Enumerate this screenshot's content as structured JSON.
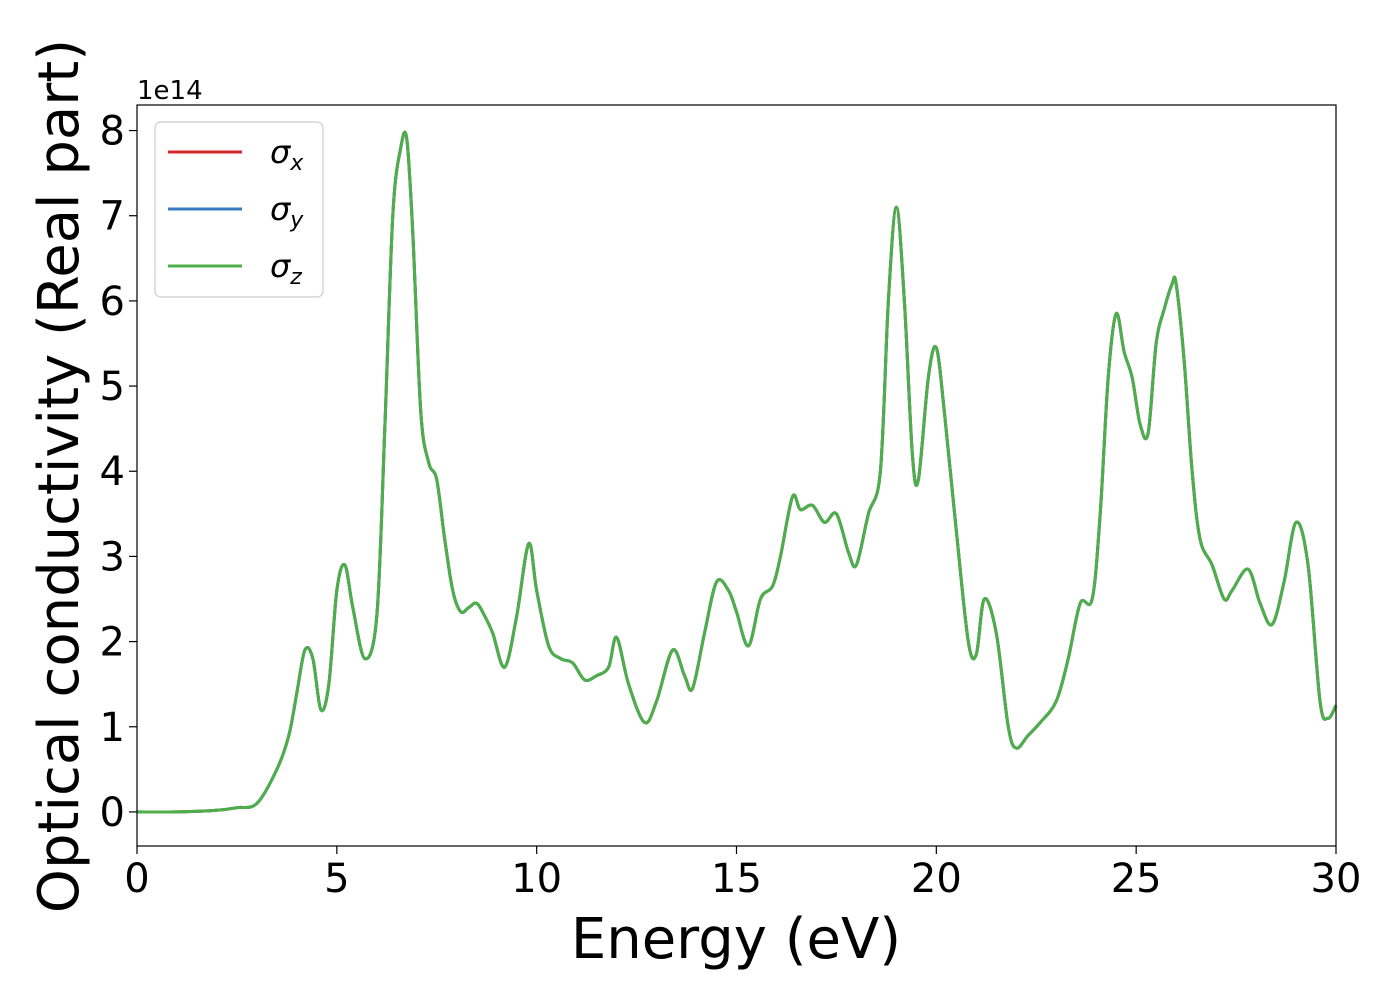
{
  "chart_data": {
    "type": "line",
    "xlabel": "Energy (eV)",
    "ylabel": "Optical conductivity (Real part)",
    "offset_text": "1e14",
    "xlim": [
      0,
      30
    ],
    "ylim": [
      -0.4,
      8.3
    ],
    "x_ticks": [
      0,
      5,
      10,
      15,
      20,
      25,
      30
    ],
    "y_ticks": [
      0,
      1,
      2,
      3,
      4,
      5,
      6,
      7,
      8
    ],
    "x_tick_labels": [
      "0",
      "5",
      "10",
      "15",
      "20",
      "25",
      "30"
    ],
    "y_tick_labels": [
      "0",
      "1",
      "2",
      "3",
      "4",
      "5",
      "6",
      "7",
      "8"
    ],
    "grid": false,
    "legend_position": "top-left",
    "series": [
      {
        "name": "σx",
        "symbol": "σ",
        "subscript": "x",
        "color": "#d62728"
      },
      {
        "name": "σy",
        "symbol": "σ",
        "subscript": "y",
        "color": "#3a7bbf"
      },
      {
        "name": "σz",
        "symbol": "σ",
        "subscript": "z",
        "color": "#4daf4a"
      }
    ],
    "x": [
      0,
      1,
      2,
      2.5,
      3,
      3.5,
      3.8,
      4.0,
      4.2,
      4.4,
      4.6,
      4.8,
      5.0,
      5.2,
      5.4,
      5.7,
      6.0,
      6.2,
      6.4,
      6.6,
      6.75,
      6.9,
      7.1,
      7.3,
      7.5,
      7.7,
      7.9,
      8.1,
      8.3,
      8.5,
      8.7,
      8.9,
      9.2,
      9.5,
      9.8,
      10.0,
      10.3,
      10.6,
      10.9,
      11.2,
      11.5,
      11.8,
      12.0,
      12.3,
      12.7,
      13.0,
      13.4,
      13.7,
      13.9,
      14.2,
      14.5,
      14.8,
      15.0,
      15.3,
      15.6,
      15.9,
      16.1,
      16.4,
      16.6,
      16.9,
      17.2,
      17.5,
      17.8,
      18.0,
      18.3,
      18.6,
      18.8,
      19.0,
      19.2,
      19.4,
      19.55,
      19.8,
      20.0,
      20.2,
      20.5,
      20.8,
      21.0,
      21.2,
      21.5,
      21.8,
      22.0,
      22.3,
      22.6,
      23.0,
      23.3,
      23.6,
      23.9,
      24.1,
      24.3,
      24.5,
      24.7,
      24.9,
      25.1,
      25.3,
      25.5,
      25.7,
      25.9,
      26.0,
      26.2,
      26.4,
      26.6,
      26.9,
      27.2,
      27.4,
      27.8,
      28.1,
      28.4,
      28.7,
      29.0,
      29.3,
      29.6,
      29.8,
      30.0
    ],
    "values": [
      0.0,
      0.0,
      0.02,
      0.05,
      0.1,
      0.5,
      0.9,
      1.4,
      1.9,
      1.8,
      1.2,
      1.5,
      2.6,
      2.9,
      2.4,
      1.8,
      2.3,
      4.5,
      7.0,
      7.8,
      7.9,
      6.8,
      4.7,
      4.1,
      3.9,
      3.2,
      2.6,
      2.35,
      2.4,
      2.45,
      2.3,
      2.1,
      1.7,
      2.3,
      3.15,
      2.6,
      1.95,
      1.8,
      1.75,
      1.55,
      1.6,
      1.7,
      2.05,
      1.5,
      1.05,
      1.3,
      1.9,
      1.6,
      1.45,
      2.1,
      2.7,
      2.6,
      2.35,
      1.95,
      2.5,
      2.65,
      3.0,
      3.7,
      3.55,
      3.6,
      3.4,
      3.5,
      3.05,
      2.9,
      3.5,
      4.0,
      6.0,
      7.1,
      6.0,
      4.2,
      3.9,
      5.1,
      5.45,
      4.7,
      3.3,
      2.0,
      1.85,
      2.5,
      2.1,
      1.0,
      0.75,
      0.9,
      1.05,
      1.3,
      1.8,
      2.45,
      2.5,
      3.5,
      5.1,
      5.85,
      5.4,
      5.1,
      4.55,
      4.45,
      5.5,
      5.9,
      6.2,
      6.2,
      5.3,
      4.0,
      3.2,
      2.9,
      2.5,
      2.6,
      2.85,
      2.45,
      2.2,
      2.7,
      3.4,
      2.9,
      1.3,
      1.1,
      1.25
    ]
  }
}
